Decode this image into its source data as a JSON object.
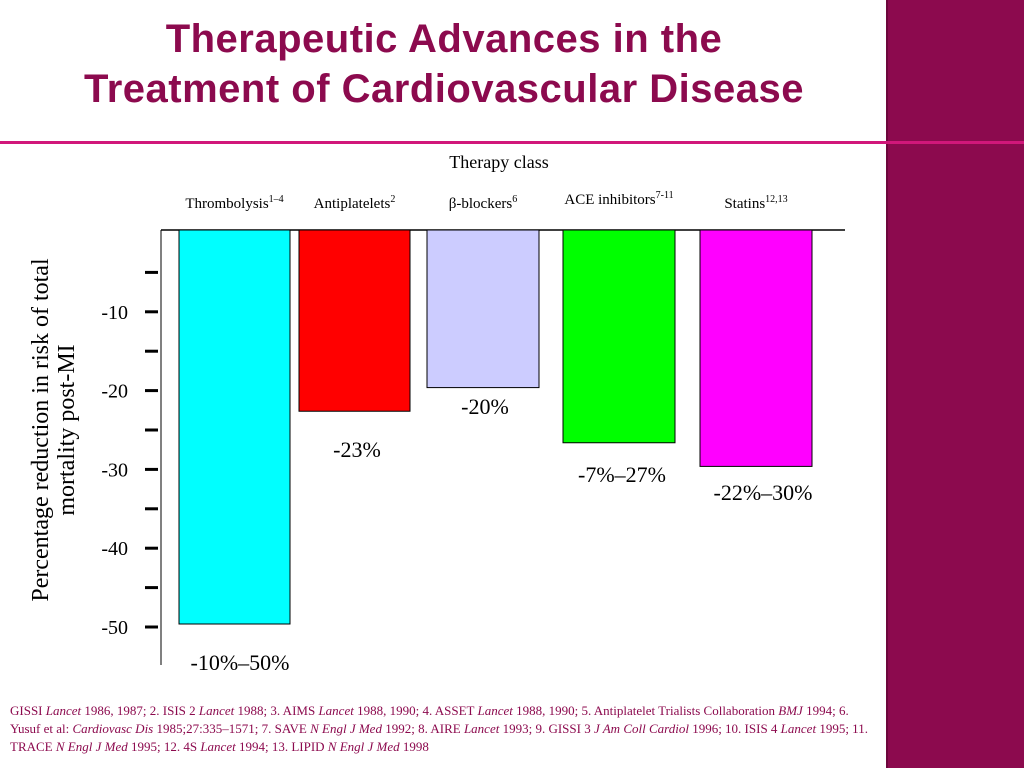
{
  "slide": {
    "title_line1": "Therapeutic Advances in the",
    "title_line2": "Treatment of Cardiovascular Disease",
    "accent_color": "#8c0a4e",
    "rule_color": "#d1177a"
  },
  "chart_data": {
    "type": "bar",
    "header": "Therapy class",
    "categories": [
      {
        "name": "Thrombolysis",
        "sup": "1–4"
      },
      {
        "name": "Antiplatelets",
        "sup": "2"
      },
      {
        "name": "β-blockers",
        "sup": "6"
      },
      {
        "name": "ACE inhibitors",
        "sup": "7-11"
      },
      {
        "name": "Statins",
        "sup": "12,13"
      }
    ],
    "values": [
      -50,
      -23,
      -20,
      -27,
      -30
    ],
    "value_labels": [
      "-10%–50%",
      "-23%",
      "-20%",
      "-7%–27%",
      "-22%–30%"
    ],
    "colors": [
      "#00ffff",
      "#ff0000",
      "#ccccff",
      "#00ff00",
      "#ff00ff"
    ],
    "ylabel_line1": "Percentage reduction in risk of total",
    "ylabel_line2": "mortality post-MI",
    "yticks": [
      -10,
      -20,
      -30,
      -40,
      -50
    ],
    "ylim": [
      -55,
      0
    ],
    "grid": false
  },
  "references": {
    "r1": "GISSI ",
    "r1_j": "Lancet",
    "r1_t": " 1986, 1987; 2. ISIS 2 ",
    "r2_j": "Lancet",
    "r2_t": " 1988; 3. AIMS ",
    "r3_j": "Lancet",
    "r3_t": " 1988, 1990; 4. ASSET ",
    "r4_j": "Lancet",
    "r4_t": " 1988, 1990; 5. Antiplatelet Trialists Collaboration ",
    "r5_j": "BMJ",
    "r5_t": " 1994; 6. Yusuf et al: ",
    "r6_j": "Cardiovasc Dis",
    "r6_t": " 1985;27:335–1571; 7. SAVE ",
    "r7_j": "N Engl J Med",
    "r7_t": " 1992; 8. AIRE ",
    "r8_j": "Lancet",
    "r8_t": " 1993; 9. GISSI 3 ",
    "r9_j": "J Am Coll Cardiol",
    "r9_t": " 1996; 10. ISIS 4 ",
    "r10_j": "Lancet",
    "r10_t": " 1995; 11. TRACE ",
    "r11_j": "N Engl J Med",
    "r11_t": " 1995; 12. 4S ",
    "r12_j": "Lancet",
    "r12_t": " 1994; 13. LIPID ",
    "r13_j": "N Engl J Med",
    "r13_t": " 1998"
  }
}
